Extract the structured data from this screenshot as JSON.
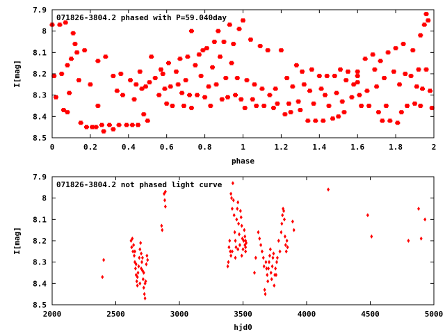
{
  "chart_data": [
    {
      "type": "scatter",
      "title": "071826-3804.2 phased with P=59.040day",
      "xlabel": "phase",
      "ylabel": "I[mag]",
      "xlim": [
        0,
        2
      ],
      "ylim": [
        7.9,
        8.5
      ],
      "y_inverted": true,
      "grid": false,
      "marker_color": "#ff0000",
      "x_ticks": [
        "0",
        "0.2",
        "0.4",
        "0.6",
        "0.8",
        "1",
        "1.2",
        "1.4",
        "1.6",
        "1.8",
        "2"
      ],
      "x_tick_values": [
        0,
        0.2,
        0.4,
        0.6,
        0.8,
        1.0,
        1.2,
        1.4,
        1.6,
        1.8,
        2.0
      ],
      "y_ticks": [
        "7.9",
        "8",
        "8.1",
        "8.2",
        "8.3",
        "8.4",
        "8.5"
      ],
      "y_tick_values": [
        7.9,
        8.0,
        8.1,
        8.2,
        8.3,
        8.4,
        8.5
      ],
      "points": [
        [
          0.0,
          7.97
        ],
        [
          0.01,
          8.21
        ],
        [
          0.02,
          8.31
        ],
        [
          0.04,
          7.97
        ],
        [
          0.05,
          8.2
        ],
        [
          0.06,
          8.37
        ],
        [
          0.07,
          7.96
        ],
        [
          0.08,
          8.38
        ],
        [
          0.08,
          8.16
        ],
        [
          0.09,
          8.29
        ],
        [
          0.1,
          8.13
        ],
        [
          0.11,
          8.01
        ],
        [
          0.12,
          8.06
        ],
        [
          0.13,
          8.1
        ],
        [
          0.14,
          8.23
        ],
        [
          0.15,
          8.43
        ],
        [
          0.17,
          8.09
        ],
        [
          0.18,
          8.45
        ],
        [
          0.2,
          8.25
        ],
        [
          0.21,
          8.45
        ],
        [
          0.23,
          8.45
        ],
        [
          0.24,
          8.14
        ],
        [
          0.24,
          8.35
        ],
        [
          0.26,
          8.44
        ],
        [
          0.27,
          8.47
        ],
        [
          0.28,
          8.12
        ],
        [
          0.3,
          8.44
        ],
        [
          0.32,
          8.46
        ],
        [
          0.32,
          8.21
        ],
        [
          0.34,
          8.28
        ],
        [
          0.35,
          8.44
        ],
        [
          0.36,
          8.2
        ],
        [
          0.37,
          8.3
        ],
        [
          0.39,
          8.44
        ],
        [
          0.41,
          8.23
        ],
        [
          0.42,
          8.44
        ],
        [
          0.43,
          8.32
        ],
        [
          0.44,
          8.25
        ],
        [
          0.45,
          8.44
        ],
        [
          0.46,
          8.19
        ],
        [
          0.47,
          8.27
        ],
        [
          0.48,
          8.39
        ],
        [
          0.49,
          8.26
        ],
        [
          0.5,
          8.42
        ],
        [
          0.51,
          8.24
        ],
        [
          0.52,
          8.12
        ],
        [
          0.54,
          8.22
        ],
        [
          0.56,
          8.3
        ],
        [
          0.57,
          8.18
        ],
        [
          0.58,
          8.2
        ],
        [
          0.59,
          8.27
        ],
        [
          0.6,
          8.34
        ],
        [
          0.61,
          8.15
        ],
        [
          0.62,
          8.26
        ],
        [
          0.63,
          8.35
        ],
        [
          0.65,
          8.19
        ],
        [
          0.66,
          8.25
        ],
        [
          0.67,
          8.13
        ],
        [
          0.68,
          8.29
        ],
        [
          0.69,
          8.35
        ],
        [
          0.7,
          8.23
        ],
        [
          0.71,
          8.12
        ],
        [
          0.72,
          8.3
        ],
        [
          0.73,
          8.36
        ],
        [
          0.73,
          8.0
        ],
        [
          0.75,
          8.16
        ],
        [
          0.76,
          8.3
        ],
        [
          0.77,
          8.11
        ],
        [
          0.78,
          8.21
        ],
        [
          0.79,
          8.09
        ],
        [
          0.8,
          8.31
        ],
        [
          0.81,
          8.08
        ],
        [
          0.82,
          8.26
        ],
        [
          0.83,
          8.35
        ],
        [
          0.84,
          8.17
        ],
        [
          0.85,
          8.05
        ],
        [
          0.86,
          8.25
        ],
        [
          0.87,
          8.0
        ],
        [
          0.88,
          8.12
        ],
        [
          0.89,
          8.32
        ],
        [
          0.9,
          8.05
        ],
        [
          0.91,
          8.22
        ],
        [
          0.92,
          8.31
        ],
        [
          0.93,
          7.97
        ],
        [
          0.94,
          8.15
        ],
        [
          0.95,
          8.06
        ],
        [
          0.96,
          8.3
        ],
        [
          0.97,
          8.22
        ],
        [
          0.98,
          7.99
        ],
        [
          0.99,
          8.32
        ],
        [
          1.0,
          7.95
        ],
        [
          1.01,
          8.36
        ],
        [
          1.02,
          8.23
        ],
        [
          1.04,
          8.04
        ],
        [
          1.05,
          8.32
        ],
        [
          1.06,
          8.25
        ],
        [
          1.07,
          8.35
        ],
        [
          1.09,
          8.07
        ],
        [
          1.1,
          8.27
        ],
        [
          1.11,
          8.35
        ],
        [
          1.13,
          8.09
        ],
        [
          1.14,
          8.3
        ],
        [
          1.16,
          8.36
        ],
        [
          1.17,
          8.27
        ],
        [
          1.18,
          8.34
        ],
        [
          1.2,
          8.09
        ],
        [
          1.22,
          8.39
        ],
        [
          1.23,
          8.22
        ],
        [
          1.24,
          8.34
        ],
        [
          1.25,
          8.38
        ],
        [
          1.26,
          8.26
        ],
        [
          1.28,
          8.16
        ],
        [
          1.29,
          8.33
        ],
        [
          1.3,
          8.37
        ],
        [
          1.31,
          8.19
        ],
        [
          1.32,
          8.25
        ],
        [
          1.34,
          8.42
        ],
        [
          1.35,
          8.28
        ],
        [
          1.36,
          8.18
        ],
        [
          1.37,
          8.34
        ],
        [
          1.38,
          8.42
        ],
        [
          1.4,
          8.21
        ],
        [
          1.41,
          8.27
        ],
        [
          1.42,
          8.42
        ],
        [
          1.43,
          8.3
        ],
        [
          1.44,
          8.21
        ],
        [
          1.45,
          8.35
        ],
        [
          1.47,
          8.41
        ],
        [
          1.48,
          8.21
        ],
        [
          1.49,
          8.29
        ],
        [
          1.5,
          8.4
        ],
        [
          1.51,
          8.18
        ],
        [
          1.52,
          8.33
        ],
        [
          1.53,
          8.38
        ],
        [
          1.54,
          8.23
        ],
        [
          1.55,
          8.19
        ],
        [
          1.57,
          8.31
        ],
        [
          1.58,
          8.25
        ],
        [
          1.6,
          8.19
        ],
        [
          1.6,
          8.21
        ],
        [
          1.6,
          8.24
        ],
        [
          1.61,
          8.3
        ],
        [
          1.62,
          8.35
        ],
        [
          1.64,
          8.13
        ],
        [
          1.65,
          8.28
        ],
        [
          1.66,
          8.35
        ],
        [
          1.68,
          8.11
        ],
        [
          1.69,
          8.18
        ],
        [
          1.7,
          8.26
        ],
        [
          1.71,
          8.38
        ],
        [
          1.72,
          8.14
        ],
        [
          1.73,
          8.42
        ],
        [
          1.74,
          8.22
        ],
        [
          1.75,
          8.35
        ],
        [
          1.76,
          8.1
        ],
        [
          1.77,
          8.42
        ],
        [
          1.79,
          8.19
        ],
        [
          1.8,
          8.08
        ],
        [
          1.81,
          8.43
        ],
        [
          1.82,
          8.25
        ],
        [
          1.83,
          8.38
        ],
        [
          1.84,
          8.06
        ],
        [
          1.85,
          8.2
        ],
        [
          1.86,
          8.35
        ],
        [
          1.88,
          8.21
        ],
        [
          1.89,
          8.09
        ],
        [
          1.9,
          8.34
        ],
        [
          1.91,
          8.26
        ],
        [
          1.92,
          8.18
        ],
        [
          1.93,
          8.35
        ],
        [
          1.94,
          8.27
        ],
        [
          1.95,
          7.97
        ],
        [
          1.96,
          8.18
        ],
        [
          1.97,
          7.95
        ],
        [
          1.98,
          8.28
        ],
        [
          1.99,
          8.36
        ],
        [
          1.93,
          8.02
        ],
        [
          1.96,
          7.92
        ]
      ]
    },
    {
      "type": "scatter",
      "title": "071826-3804.2 not phased light curve",
      "xlabel": "hjd0",
      "ylabel": "I[mag]",
      "xlim": [
        2000,
        5000
      ],
      "ylim": [
        7.9,
        8.5
      ],
      "y_inverted": true,
      "grid": false,
      "marker_color": "#ff0000",
      "x_ticks": [
        "2000",
        "2500",
        "3000",
        "3500",
        "4000",
        "4500",
        "5000"
      ],
      "x_tick_values": [
        2000,
        2500,
        3000,
        3500,
        4000,
        4500,
        5000
      ],
      "y_ticks": [
        "7.9",
        "8",
        "8.1",
        "8.2",
        "8.3",
        "8.4",
        "8.5"
      ],
      "y_tick_values": [
        7.9,
        8.0,
        8.1,
        8.2,
        8.3,
        8.4,
        8.5
      ],
      "points": [
        [
          2395,
          8.37
        ],
        [
          2405,
          8.29
        ],
        [
          2620,
          8.2
        ],
        [
          2625,
          8.23
        ],
        [
          2630,
          8.19
        ],
        [
          2635,
          8.25
        ],
        [
          2640,
          8.22
        ],
        [
          2645,
          8.27
        ],
        [
          2650,
          8.3
        ],
        [
          2655,
          8.33
        ],
        [
          2660,
          8.36
        ],
        [
          2665,
          8.39
        ],
        [
          2670,
          8.41
        ],
        [
          2675,
          8.35
        ],
        [
          2680,
          8.32
        ],
        [
          2685,
          8.28
        ],
        [
          2690,
          8.24
        ],
        [
          2695,
          8.21
        ],
        [
          2700,
          8.26
        ],
        [
          2705,
          8.3
        ],
        [
          2710,
          8.34
        ],
        [
          2715,
          8.38
        ],
        [
          2720,
          8.42
        ],
        [
          2725,
          8.45
        ],
        [
          2730,
          8.47
        ],
        [
          2735,
          8.39
        ],
        [
          2740,
          8.31
        ],
        [
          2745,
          8.27
        ],
        [
          2750,
          8.29
        ],
        [
          2650,
          8.25
        ],
        [
          2660,
          8.31
        ],
        [
          2670,
          8.37
        ],
        [
          2690,
          8.4
        ],
        [
          2700,
          8.33
        ],
        [
          2710,
          8.28
        ],
        [
          2720,
          8.35
        ],
        [
          2730,
          8.4
        ],
        [
          2860,
          8.13
        ],
        [
          2865,
          8.15
        ],
        [
          2880,
          7.98
        ],
        [
          2885,
          8.01
        ],
        [
          2890,
          8.04
        ],
        [
          2890,
          7.97
        ],
        [
          3380,
          8.32
        ],
        [
          3385,
          8.3
        ],
        [
          3390,
          8.23
        ],
        [
          3395,
          8.2
        ],
        [
          3400,
          8.25
        ],
        [
          3405,
          7.98
        ],
        [
          3410,
          8.0
        ],
        [
          3415,
          8.05
        ],
        [
          3420,
          7.93
        ],
        [
          3425,
          8.01
        ],
        [
          3430,
          8.08
        ],
        [
          3435,
          8.16
        ],
        [
          3440,
          8.2
        ],
        [
          3445,
          8.23
        ],
        [
          3450,
          8.1
        ],
        [
          3455,
          8.05
        ],
        [
          3460,
          8.02
        ],
        [
          3465,
          8.12
        ],
        [
          3470,
          8.17
        ],
        [
          3475,
          8.22
        ],
        [
          3480,
          8.06
        ],
        [
          3485,
          8.09
        ],
        [
          3490,
          8.13
        ],
        [
          3495,
          8.19
        ],
        [
          3500,
          8.24
        ],
        [
          3505,
          8.2
        ],
        [
          3510,
          8.15
        ],
        [
          3515,
          8.22
        ],
        [
          3520,
          8.25
        ],
        [
          3525,
          8.21
        ],
        [
          3405,
          8.27
        ],
        [
          3415,
          8.25
        ],
        [
          3440,
          8.28
        ],
        [
          3460,
          8.24
        ],
        [
          3490,
          8.27
        ],
        [
          3515,
          8.18
        ],
        [
          3520,
          8.2
        ],
        [
          3520,
          8.23
        ],
        [
          3590,
          8.35
        ],
        [
          3600,
          8.28
        ],
        [
          3620,
          8.16
        ],
        [
          3630,
          8.19
        ],
        [
          3640,
          8.22
        ],
        [
          3650,
          8.25
        ],
        [
          3660,
          8.28
        ],
        [
          3665,
          8.32
        ],
        [
          3670,
          8.43
        ],
        [
          3675,
          8.45
        ],
        [
          3680,
          8.3
        ],
        [
          3685,
          8.33
        ],
        [
          3690,
          8.36
        ],
        [
          3695,
          8.39
        ],
        [
          3700,
          8.33
        ],
        [
          3705,
          8.3
        ],
        [
          3710,
          8.27
        ],
        [
          3715,
          8.24
        ],
        [
          3720,
          8.35
        ],
        [
          3725,
          8.38
        ],
        [
          3730,
          8.32
        ],
        [
          3735,
          8.28
        ],
        [
          3740,
          8.26
        ],
        [
          3745,
          8.41
        ],
        [
          3750,
          8.36
        ],
        [
          3755,
          8.33
        ],
        [
          3760,
          8.36
        ],
        [
          3765,
          8.3
        ],
        [
          3770,
          8.28
        ],
        [
          3780,
          8.2
        ],
        [
          3790,
          8.25
        ],
        [
          3800,
          8.16
        ],
        [
          3805,
          8.12
        ],
        [
          3810,
          8.08
        ],
        [
          3815,
          8.05
        ],
        [
          3820,
          8.06
        ],
        [
          3825,
          8.1
        ],
        [
          3830,
          8.18
        ],
        [
          3835,
          8.22
        ],
        [
          3840,
          8.25
        ],
        [
          3845,
          8.2
        ],
        [
          3850,
          8.23
        ],
        [
          3890,
          8.11
        ],
        [
          3900,
          8.15
        ],
        [
          4170,
          7.96
        ],
        [
          4480,
          8.08
        ],
        [
          4510,
          8.18
        ],
        [
          4800,
          8.2
        ],
        [
          4880,
          8.05
        ],
        [
          4900,
          8.19
        ],
        [
          4930,
          8.1
        ]
      ]
    }
  ]
}
